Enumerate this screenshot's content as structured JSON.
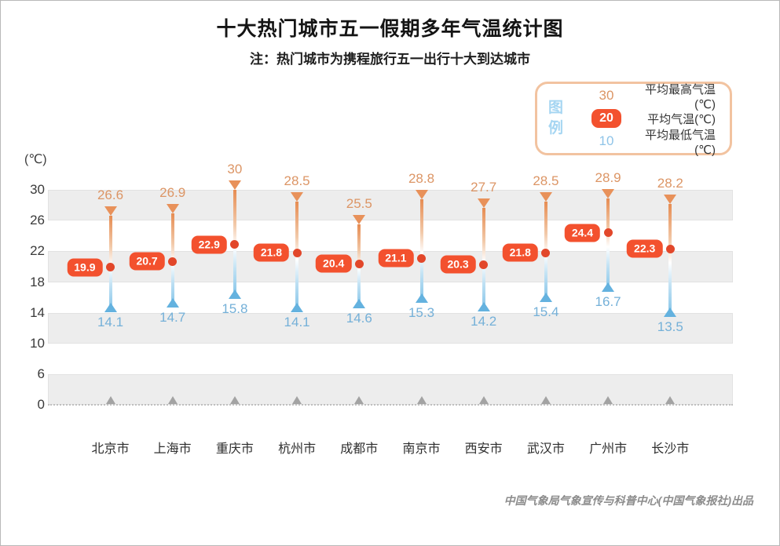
{
  "title": "十大热门城市五一假期多年气温统计图",
  "subtitle": "注：热门城市为携程旅行五一出行十大到达城市",
  "credit": "中国气象局气象宣传与科普中心(中国气象报社)出品",
  "y_axis": {
    "unit": "(℃)",
    "ticks": [
      30,
      26,
      22,
      18,
      14,
      10,
      6,
      0
    ]
  },
  "legend": {
    "heading": "图例",
    "items": [
      {
        "key": "30",
        "label": "平均最高气温(℃)"
      },
      {
        "key": "20",
        "label": "平均气温(℃)"
      },
      {
        "key": "10",
        "label": "平均最低气温(℃)"
      }
    ]
  },
  "chart_data": {
    "type": "bar",
    "variant": "floating-range-thermometer",
    "title": "十大热门城市五一假期多年气温统计图",
    "categories": [
      "北京市",
      "上海市",
      "重庆市",
      "杭州市",
      "成都市",
      "南京市",
      "西安市",
      "武汉市",
      "广州市",
      "长沙市"
    ],
    "series": [
      {
        "name": "平均最高气温(℃)",
        "values": [
          26.6,
          26.9,
          30,
          28.5,
          25.5,
          28.8,
          27.7,
          28.5,
          28.9,
          28.2
        ]
      },
      {
        "name": "平均气温(℃)",
        "values": [
          19.9,
          20.7,
          22.9,
          21.8,
          20.4,
          21.1,
          20.3,
          21.8,
          24.4,
          22.3
        ]
      },
      {
        "name": "平均最低气温(℃)",
        "values": [
          14.1,
          14.7,
          15.8,
          14.1,
          14.6,
          15.3,
          14.2,
          15.4,
          16.7,
          13.5
        ]
      }
    ],
    "ylabel": "(℃)",
    "ylim": [
      0,
      30
    ],
    "yticks": [
      30,
      26,
      22,
      18,
      14,
      10,
      6,
      0
    ],
    "grid": "alternating horizontal gray bands on ranges 30-26, 22-18, 14-10, 6-0",
    "legend_position": "top-right"
  },
  "colors": {
    "max_label": "#DC9565",
    "min_label": "#74B0D8",
    "avg_pill_bg": "#F3512E",
    "avg_dot": "#E2472A",
    "stem_top": "#E68C52",
    "stem_bottom": "#7FC2E8",
    "triangle_top": "#E8915A",
    "triangle_bottom": "#64B2DF",
    "band": "#EDEDED",
    "legend_border": "#F2C3A0",
    "legend_heading": "#A6D6F2",
    "baseline_marker": "#A3A3A3"
  }
}
